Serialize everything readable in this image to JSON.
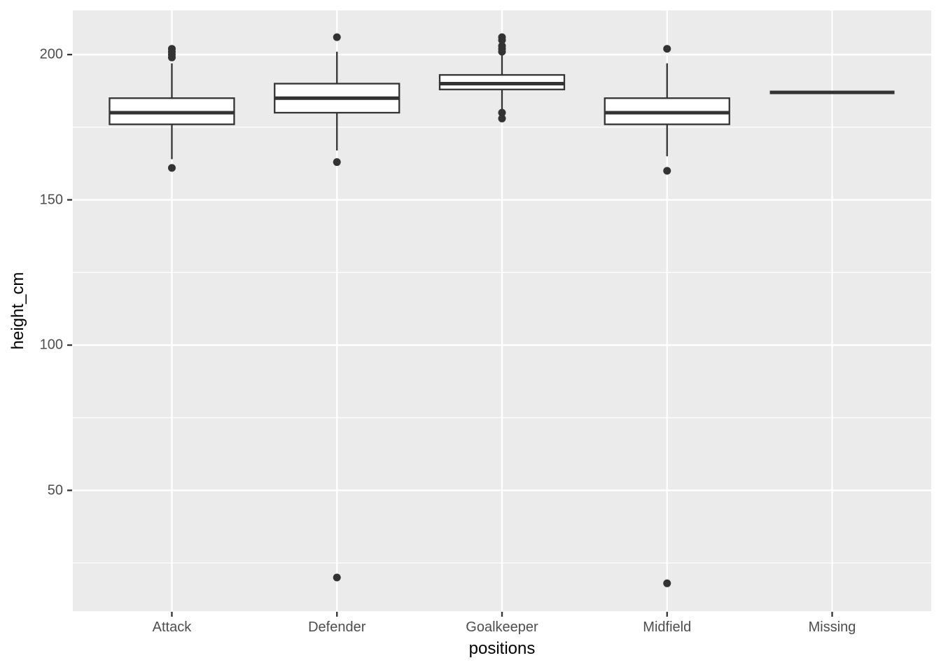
{
  "figure": {
    "colors": {
      "page_background": "#FFFFFF",
      "panel_background": "#EBEBEB",
      "gridline": "#FFFFFF",
      "box_stroke": "#333333",
      "box_fill": "#FFFFFF",
      "outlier_dot": "#333333",
      "tick_mark": "#333333",
      "axis_text": "#4D4D4D",
      "axis_title": "#000000"
    }
  },
  "chart_data": {
    "type": "boxplot",
    "title": "",
    "xlabel": "positions",
    "ylabel": "height_cm",
    "categories": [
      "Attack",
      "Defender",
      "Goalkeeper",
      "Midfield",
      "Missing"
    ],
    "y_ticks": [
      200,
      150,
      100,
      50
    ],
    "y_minor_gridlines": [
      175,
      125,
      75,
      25
    ],
    "ylim": [
      8,
      215
    ],
    "grid": true,
    "legend": false,
    "series": [
      {
        "category": "Attack",
        "whisker_low": 164,
        "q1": 176,
        "median": 180,
        "q3": 185,
        "whisker_high": 197,
        "outliers_low": [
          161
        ],
        "outliers_high": [
          199,
          200,
          201,
          202
        ]
      },
      {
        "category": "Defender",
        "whisker_low": 167,
        "q1": 180,
        "median": 185,
        "q3": 190,
        "whisker_high": 201,
        "outliers_low": [
          20,
          163
        ],
        "outliers_high": [
          206
        ]
      },
      {
        "category": "Goalkeeper",
        "whisker_low": 181,
        "q1": 188,
        "median": 190,
        "q3": 193,
        "whisker_high": 200,
        "outliers_low": [
          178,
          180
        ],
        "outliers_high": [
          201,
          202,
          203,
          205,
          206
        ]
      },
      {
        "category": "Midfield",
        "whisker_low": 165,
        "q1": 176,
        "median": 180,
        "q3": 185,
        "whisker_high": 197,
        "outliers_low": [
          18,
          160
        ],
        "outliers_high": [
          202
        ]
      },
      {
        "category": "Missing",
        "whisker_low": 187,
        "q1": 187,
        "median": 187,
        "q3": 187,
        "whisker_high": 187,
        "outliers_low": [],
        "outliers_high": []
      }
    ]
  }
}
